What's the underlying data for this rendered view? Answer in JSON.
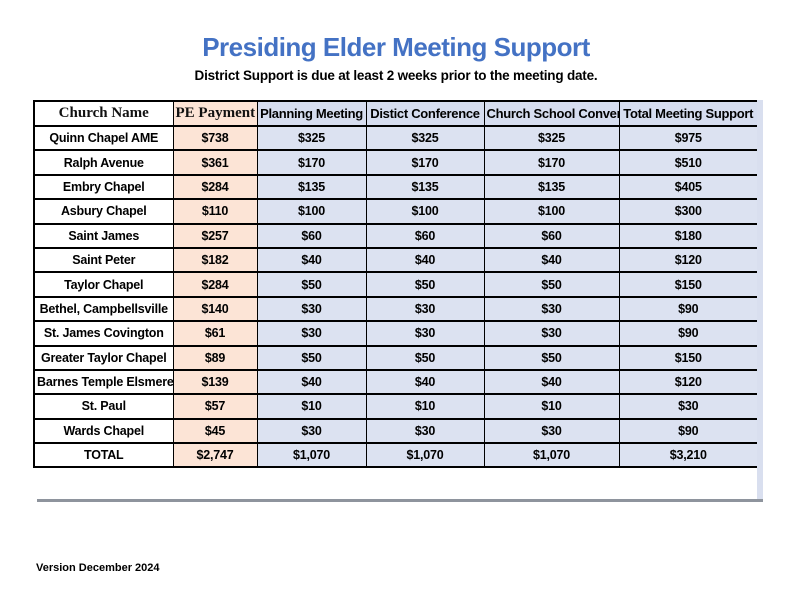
{
  "page": {
    "title": "Presiding Elder Meeting Support",
    "subtitle": "District Support is due at least 2 weeks prior to the meeting date.",
    "version": "Version December 2024"
  },
  "colors": {
    "title_blue": "#4472C4",
    "pe_column_fill": "#FCE4D6",
    "meeting_column_fill": "#DCE2F1",
    "header_blue_fill": "#D6DDEF",
    "border": "#000000"
  },
  "table": {
    "columns": [
      {
        "label": "Church Name"
      },
      {
        "label": "PE Payment"
      },
      {
        "label": "Planning Meeting"
      },
      {
        "label": "Distict Conference"
      },
      {
        "label": "Church School Convention"
      },
      {
        "label": "Total Meeting Support"
      }
    ],
    "rows": [
      [
        "Quinn Chapel AME",
        "$738",
        "$325",
        "$325",
        "$325",
        "$975"
      ],
      [
        "Ralph Avenue",
        "$361",
        "$170",
        "$170",
        "$170",
        "$510"
      ],
      [
        "Embry Chapel",
        "$284",
        "$135",
        "$135",
        "$135",
        "$405"
      ],
      [
        "Asbury Chapel",
        "$110",
        "$100",
        "$100",
        "$100",
        "$300"
      ],
      [
        "Saint James",
        "$257",
        "$60",
        "$60",
        "$60",
        "$180"
      ],
      [
        "Saint Peter",
        "$182",
        "$40",
        "$40",
        "$40",
        "$120"
      ],
      [
        "Taylor Chapel",
        "$284",
        "$50",
        "$50",
        "$50",
        "$150"
      ],
      [
        "Bethel, Campbellsville",
        "$140",
        "$30",
        "$30",
        "$30",
        "$90"
      ],
      [
        "St. James Covington",
        "$61",
        "$30",
        "$30",
        "$30",
        "$90"
      ],
      [
        "Greater Taylor Chapel",
        "$89",
        "$50",
        "$50",
        "$50",
        "$150"
      ],
      [
        "Barnes Temple Elsmere",
        "$139",
        "$40",
        "$40",
        "$40",
        "$120"
      ],
      [
        "St. Paul",
        "$57",
        "$10",
        "$10",
        "$10",
        "$30"
      ],
      [
        "Wards Chapel",
        "$45",
        "$30",
        "$30",
        "$30",
        "$90"
      ],
      [
        "TOTAL",
        "$2,747",
        "$1,070",
        "$1,070",
        "$1,070",
        "$3,210"
      ]
    ]
  }
}
